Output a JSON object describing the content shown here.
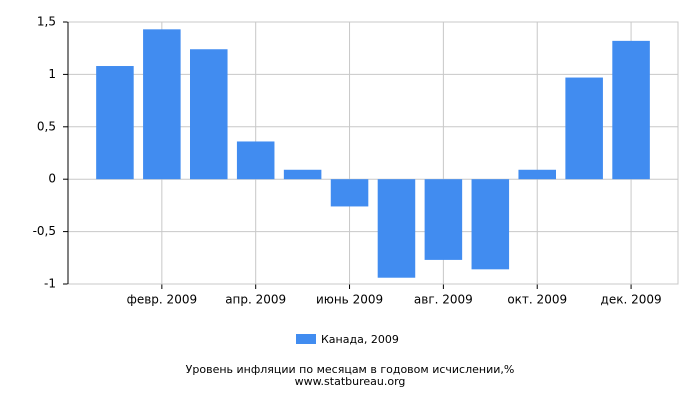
{
  "chart_data": {
    "type": "bar",
    "title": "Уровень инфляции по месяцам в годовом исчислении,%",
    "subtitle": "www.statbureau.org",
    "categories": [
      null,
      "февр. 2009",
      null,
      "апр. 2009",
      null,
      "июнь 2009",
      null,
      "авг. 2009",
      null,
      "окт. 2009",
      null,
      "дек. 2009"
    ],
    "series": [
      {
        "name": "Канада, 2009",
        "color": "#418cf0",
        "values": [
          1.08,
          1.43,
          1.24,
          0.36,
          0.09,
          -0.26,
          -0.94,
          -0.77,
          -0.86,
          0.09,
          0.97,
          1.32
        ]
      }
    ],
    "ylim": [
      -1,
      1.5
    ],
    "yticks": [
      {
        "value": 1.5,
        "label": "1,5"
      },
      1,
      {
        "value": 0.5,
        "label": "0,5"
      },
      0,
      {
        "value": -0.5,
        "label": "-0,5"
      },
      -1
    ],
    "grid": true
  }
}
